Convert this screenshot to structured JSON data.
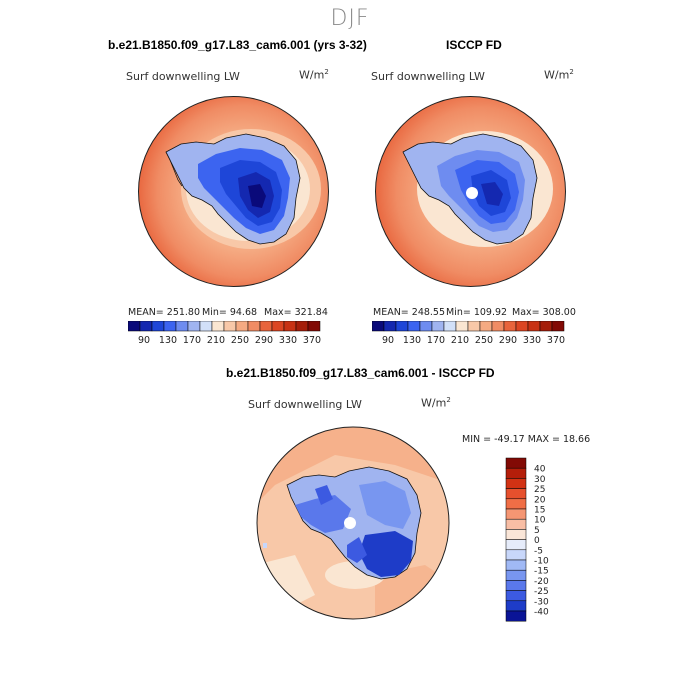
{
  "page": {
    "title": "DJF"
  },
  "panels": [
    {
      "title": "b.e21.B1850.f09_g17.L83_cam6.001 (yrs 3-32)",
      "variable": "Surf downwelling LW",
      "units_base": "W/m",
      "units_sup": "2",
      "stats": {
        "mean": "MEAN= 251.80",
        "min": "Min= 94.68",
        "max": "Max= 321.84"
      }
    },
    {
      "title": "ISCCP FD",
      "variable": "Surf downwelling LW",
      "units_base": "W/m",
      "units_sup": "2",
      "stats": {
        "mean": "MEAN= 248.55",
        "min": "Min= 109.92",
        "max": "Max= 308.00"
      }
    },
    {
      "title": "b.e21.B1850.f09_g17.L83_cam6.001 - ISCCP FD",
      "variable": "Surf downwelling LW",
      "units_base": "W/m",
      "units_sup": "2",
      "stats": {
        "minmax": "MIN = -49.17 MAX =  18.66"
      }
    }
  ],
  "colorbar_abs": {
    "labels": [
      "90",
      "130",
      "170",
      "210",
      "250",
      "290",
      "330",
      "370"
    ],
    "colors": [
      "#0a0a7a",
      "#1428b0",
      "#1e46d8",
      "#3c64f0",
      "#6e8cf0",
      "#a0b4f0",
      "#d2e0f8",
      "#fae6d2",
      "#f8c8a8",
      "#f5aa82",
      "#f08c64",
      "#e8643c",
      "#dc4623",
      "#c83214",
      "#a51e0a",
      "#820a05"
    ]
  },
  "colorbar_diff": {
    "labels": [
      "40",
      "30",
      "25",
      "20",
      "15",
      "10",
      "5",
      "0",
      "-5",
      "-10",
      "-15",
      "-20",
      "-25",
      "-30",
      "-40"
    ],
    "colors": [
      "#820a05",
      "#b41e0a",
      "#d23214",
      "#e6502d",
      "#f06e46",
      "#f59673",
      "#f8bea5",
      "#fae6d8",
      "#e6ecfa",
      "#c8d7fa",
      "#a0b9f5",
      "#7896f0",
      "#5a78eb",
      "#3c5ae1",
      "#1e3cc8",
      "#0a1496"
    ]
  }
}
